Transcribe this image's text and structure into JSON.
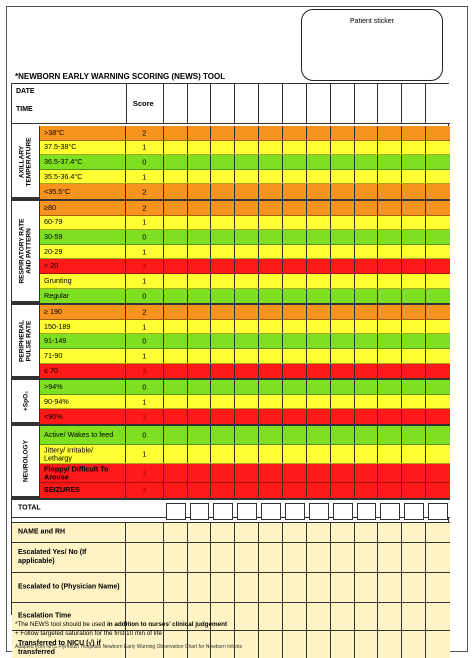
{
  "sticker": {
    "label": "Patient sticker"
  },
  "title": "*NEWBORN EARLY WARNING SCORING (NEWS) TOOL",
  "header": {
    "date_label": "DATE",
    "time_label": "TIME",
    "score_label": "Score"
  },
  "sections": [
    {
      "name": "AXILLARY TEMPERATURE",
      "rows": [
        {
          "label": ">38°C",
          "score": "2",
          "color": "#f7931e"
        },
        {
          "label": "37.5-38°C",
          "score": "1",
          "color": "#ffff33"
        },
        {
          "label": "36.5-37.4°C",
          "score": "0",
          "color": "#7fe022"
        },
        {
          "label": "35.5-36.4°C",
          "score": "1",
          "color": "#ffff33"
        },
        {
          "label": "<35.5°C",
          "score": "2",
          "color": "#f7931e"
        }
      ]
    },
    {
      "name": "RESPIRATORY RATE AND PATTERN",
      "rows": [
        {
          "label": "≥80",
          "score": "2",
          "color": "#f7931e"
        },
        {
          "label": "60-79",
          "score": "1",
          "color": "#ffff33"
        },
        {
          "label": "30-59",
          "score": "0",
          "color": "#7fe022"
        },
        {
          "label": "20-29",
          "score": "1",
          "color": "#ffff33"
        },
        {
          "label": "< 20",
          "score": "3",
          "color": "#ff1a1a"
        },
        {
          "label": "Grunting",
          "score": "1",
          "color": "#ffff33"
        },
        {
          "label": "Regular",
          "score": "0",
          "color": "#7fe022"
        }
      ]
    },
    {
      "name": "PERIPHERAL PULSE RATE",
      "rows": [
        {
          "label": "≥ 190",
          "score": "2",
          "color": "#f7931e"
        },
        {
          "label": "150-189",
          "score": "1",
          "color": "#ffff33"
        },
        {
          "label": "91-149",
          "score": "0",
          "color": "#7fe022"
        },
        {
          "label": "71-90",
          "score": "1",
          "color": "#ffff33"
        },
        {
          "label": "≤ 70",
          "score": "3",
          "color": "#ff1a1a"
        }
      ]
    },
    {
      "name": "+SpO₂",
      "rows": [
        {
          "label": ">94%",
          "score": "0",
          "color": "#7fe022"
        },
        {
          "label": "90-94%",
          "score": "1",
          "color": "#ffff33"
        },
        {
          "label": "<90%",
          "score": "3",
          "color": "#ff1a1a"
        }
      ]
    },
    {
      "name": "NEUROLOGY",
      "rows": [
        {
          "label": "Active/ Wakes to feed",
          "score": "0",
          "color": "#7fe022"
        },
        {
          "label": "Jittery/ Irritable/ Lethargy",
          "score": "1",
          "color": "#ffff33"
        },
        {
          "label": "Floppy/ Difficult To Arouse",
          "score": "3",
          "color": "#ff1a1a"
        },
        {
          "label": "SEIZURES",
          "score": "3",
          "color": "#ff1a1a"
        }
      ]
    }
  ],
  "total_label": "TOTAL",
  "bottom_rows": [
    {
      "label": "NAME and RH"
    },
    {
      "label": "Escalated Yes/ No (If applicable)"
    },
    {
      "label": "Escalated to (Physician Name)"
    },
    {
      "label": "Escalation Time"
    },
    {
      "label": "Transferred to NICU (√) if transferred"
    }
  ],
  "footnotes": {
    "line1_prefix": "*The NEWS tool should be used ",
    "line1_bold": "in addition to nurses’ clinical judgement",
    "line2": "+ Follow targeted saturation for the first 10 min of life",
    "adapted": "Adapted from NHS Plymouth Hospitals Newborn Early Warning Observation Chart for Newborn Infants"
  }
}
